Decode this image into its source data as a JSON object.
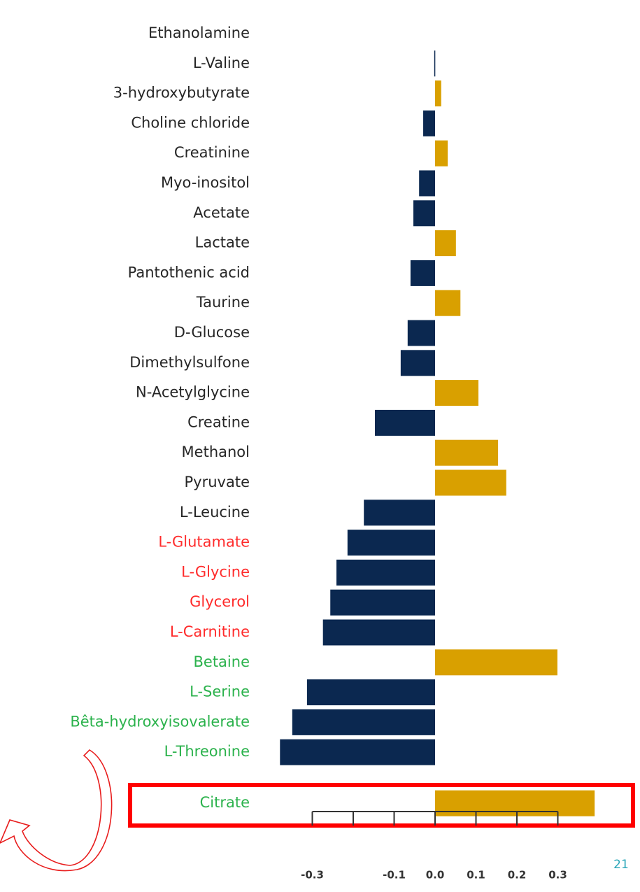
{
  "chart_data": {
    "type": "bar",
    "orientation": "horizontal",
    "categories": [
      "Ethanolamine",
      "L-Valine",
      "3-hydroxybutyrate",
      "Choline chloride",
      "Creatinine",
      "Myo-inositol",
      "Acetate",
      "Lactate",
      "Pantothenic acid",
      "Taurine",
      "D-Glucose",
      "Dimethylsulfone",
      "N-Acetylglycine",
      "Creatine",
      "Methanol",
      "Pyruvate",
      "L-Leucine",
      "L-Glutamate",
      "L-Glycine",
      "Glycerol",
      "L-Carnitine",
      "Betaine",
      "L-Serine",
      "Bêta-hydroxyisovalerate",
      "L-Threonine",
      "Citrate"
    ],
    "category_colors": [
      "#262626",
      "#262626",
      "#262626",
      "#262626",
      "#262626",
      "#262626",
      "#262626",
      "#262626",
      "#262626",
      "#262626",
      "#262626",
      "#262626",
      "#262626",
      "#262626",
      "#262626",
      "#262626",
      "#262626",
      "#ff2b2b",
      "#ff2b2b",
      "#ff2b2b",
      "#ff2b2b",
      "#2bb24c",
      "#2bb24c",
      "#2bb24c",
      "#2bb24c",
      "#2bb24c"
    ],
    "values": [
      0,
      -0.002,
      0.015,
      -0.029,
      0.031,
      -0.039,
      -0.053,
      0.051,
      -0.06,
      0.062,
      -0.067,
      -0.084,
      0.106,
      -0.147,
      0.154,
      0.174,
      -0.174,
      -0.214,
      -0.241,
      -0.256,
      -0.274,
      0.299,
      -0.313,
      -0.349,
      -0.379,
      0.39
    ],
    "negative_color": "#0b2850",
    "positive_color": "#d9a000",
    "xlim": [
      -0.4,
      0.4
    ],
    "xticks": [
      -0.3,
      {
        "value": -0.2,
        "label": null
      },
      -0.1,
      {
        "value": 0,
        "label": "0.0"
      },
      0.1,
      0.2,
      0.3
    ]
  },
  "page_number": "21"
}
